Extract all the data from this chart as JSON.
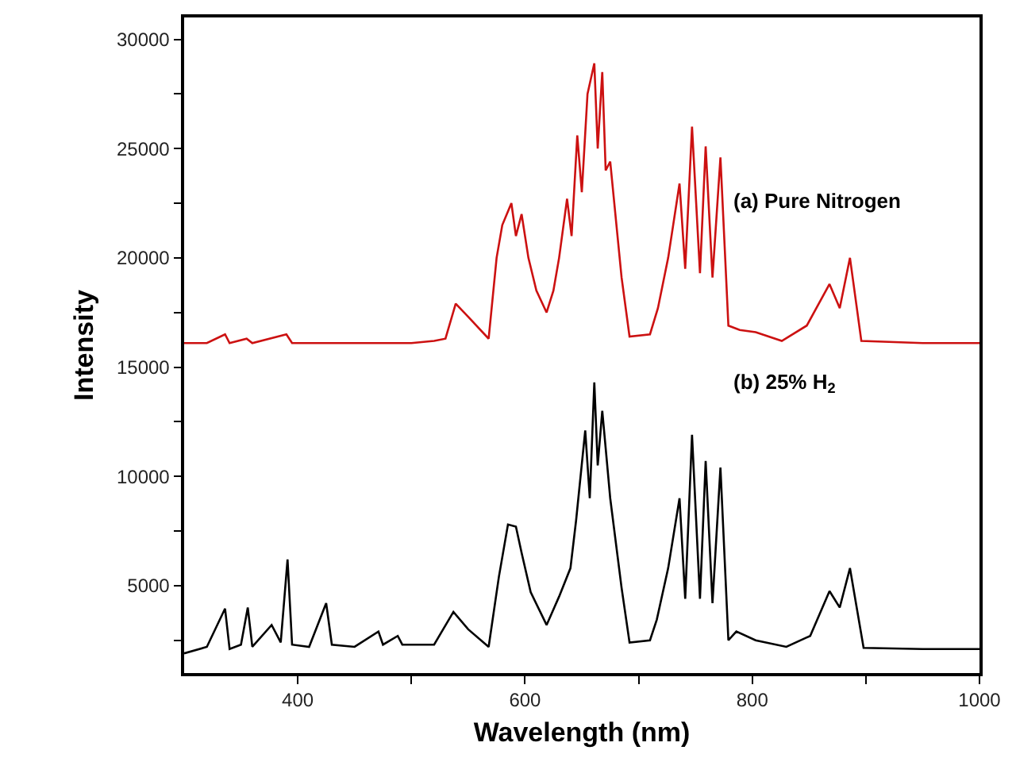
{
  "chart_data": {
    "type": "line",
    "xlabel": "Wavelength (nm)",
    "ylabel": "Intensity",
    "xlim": [
      300,
      1000
    ],
    "ylim": [
      1000,
      31000
    ],
    "xticks": [
      400,
      {
        "value": 500,
        "label": null
      },
      600,
      {
        "value": 700,
        "label": null
      },
      800,
      {
        "value": 900,
        "label": null
      },
      1000
    ],
    "yticks": [
      {
        "value": 2500,
        "label": null
      },
      5000,
      {
        "value": 7500,
        "label": null
      },
      10000,
      {
        "value": 12500,
        "label": null
      },
      15000,
      {
        "value": 17500,
        "label": null
      },
      20000,
      {
        "value": 22500,
        "label": null
      },
      25000,
      {
        "value": 27500,
        "label": null
      },
      30000
    ],
    "marker": "none",
    "line_style": "solid",
    "annotations": [
      "(a) Pure Nitrogen",
      "(b) 25% H$_{2}$"
    ],
    "series": [
      {
        "color": "#cc1111",
        "x": [
          300,
          320,
          336,
          340,
          355,
          360,
          390,
          395,
          450,
          500,
          520,
          530,
          539,
          550,
          568,
          575,
          580,
          588,
          592,
          597,
          603,
          610,
          619,
          625,
          630,
          637,
          641,
          646,
          650,
          655,
          661,
          664,
          668,
          671,
          675,
          685,
          692,
          710,
          717,
          726,
          736,
          741,
          747,
          754,
          759,
          765,
          772,
          779,
          789,
          803,
          826,
          848,
          868,
          877,
          886,
          896,
          950,
          1000
        ],
        "values": [
          16100,
          16100,
          16500,
          16100,
          16300,
          16100,
          16500,
          16100,
          16100,
          16100,
          16200,
          16300,
          17900,
          17300,
          16300,
          20000,
          21500,
          22500,
          21000,
          22000,
          20000,
          18500,
          17500,
          18500,
          20000,
          22700,
          21000,
          25600,
          23000,
          27500,
          28900,
          25000,
          28500,
          24000,
          24400,
          19100,
          16400,
          16500,
          17700,
          20000,
          23400,
          19500,
          26000,
          19300,
          25100,
          19100,
          24600,
          16900,
          16700,
          16600,
          16200,
          16900,
          18800,
          17700,
          20000,
          16200,
          16100,
          16100
        ]
      },
      {
        "color": "#000000",
        "x": [
          300,
          320,
          336,
          340,
          350,
          356,
          360,
          377,
          385,
          391,
          395,
          410,
          425,
          430,
          450,
          471,
          475,
          488,
          492,
          520,
          537,
          550,
          568,
          577,
          585,
          592,
          597,
          605,
          619,
          630,
          640,
          645,
          653,
          657,
          661,
          664,
          668,
          675,
          685,
          692,
          710,
          716,
          726,
          736,
          741,
          747,
          754,
          759,
          765,
          772,
          779,
          786,
          803,
          830,
          851,
          868,
          877,
          886,
          898,
          950,
          1000
        ],
        "values": [
          1900,
          2200,
          3950,
          2100,
          2300,
          4000,
          2200,
          3200,
          2400,
          6200,
          2300,
          2200,
          4200,
          2300,
          2200,
          2900,
          2300,
          2700,
          2300,
          2300,
          3800,
          3000,
          2200,
          5400,
          7800,
          7700,
          6500,
          4700,
          3200,
          4500,
          5800,
          8000,
          12100,
          9000,
          14300,
          10500,
          13000,
          9000,
          4900,
          2400,
          2500,
          3450,
          5800,
          9000,
          4400,
          11900,
          4400,
          10700,
          4200,
          10400,
          2500,
          2900,
          2500,
          2200,
          2700,
          4750,
          4000,
          5800,
          2150,
          2100,
          2100
        ]
      }
    ]
  }
}
